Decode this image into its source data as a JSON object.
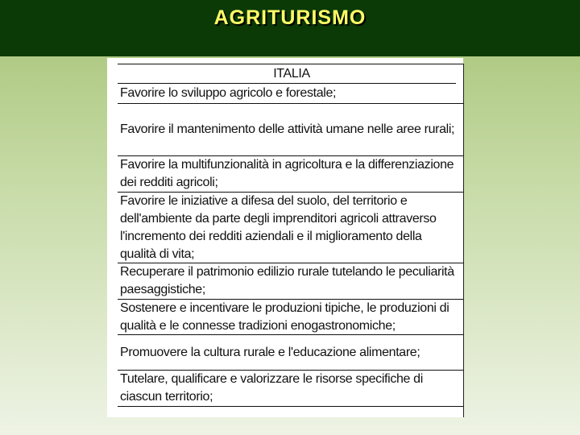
{
  "slide": {
    "title": "AGRITURISMO"
  },
  "table": {
    "header": "ITALIA",
    "rows": [
      "Favorire lo sviluppo agricolo e forestale;",
      "Favorire il mantenimento delle attività umane nelle aree rurali;",
      "Favorire la multifunzionalità in agricoltura e la differenziazione dei redditi agricoli;",
      "Favorire le iniziative a difesa del suolo, del territorio e dell'ambiente da parte degli imprenditori agricoli attraverso l'incremento dei redditi aziendali e il miglioramento della qualità di vita;",
      "Recuperare il patrimonio edilizio rurale tutelando le peculiarità paesaggistiche;",
      "Sostenere e incentivare le produzioni tipiche, le produzioni di qualità e le connesse tradizioni enogastronomiche;",
      "Promuovere la cultura rurale e l'educazione alimentare;",
      "Tutelare, qualificare e valorizzare le risorse specifiche di ciascun territorio;"
    ]
  },
  "colors": {
    "header_bg": "#0b3a07",
    "title": "#ffff66"
  }
}
